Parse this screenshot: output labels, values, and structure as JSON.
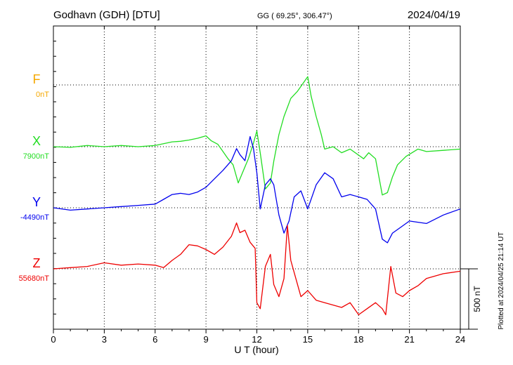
{
  "header": {
    "station": "Godhavn (GDH)  [DTU]",
    "coords": "GG ( 69.25°, 306.47°)",
    "date": "2024/04/19"
  },
  "side_note": "Plotted at 2024/04/25 21:14 UT",
  "chart_data": {
    "type": "line",
    "title": "Godhavn (GDH)  [DTU]",
    "xlabel": "U T (hour)",
    "ylabel": "",
    "xlim": [
      0,
      24
    ],
    "xticks": [
      0,
      3,
      6,
      9,
      12,
      15,
      18,
      21,
      24
    ],
    "grid": true,
    "scale_bar": {
      "label": "500 nT",
      "value_nT": 500
    },
    "component_spacing_nT": 500,
    "series": [
      {
        "name": "F",
        "baseline_label": "0nT",
        "baseline_nT": 0,
        "color": "#f5a800",
        "x": [],
        "y": []
      },
      {
        "name": "X",
        "baseline_label": "7900nT",
        "baseline_nT": 7900,
        "color": "#22dd22",
        "x": [
          0,
          1,
          2,
          3,
          4,
          5,
          6,
          7,
          7.5,
          8,
          8.5,
          9,
          9.3,
          9.7,
          10,
          10.3,
          10.6,
          10.9,
          11.2,
          11.5,
          11.8,
          12,
          12.2,
          12.5,
          12.8,
          13,
          13.3,
          13.6,
          14,
          14.4,
          14.7,
          15,
          15.2,
          15.5,
          15.8,
          16,
          16.5,
          17,
          17.5,
          18,
          18.3,
          18.6,
          19,
          19.4,
          19.7,
          20,
          20.3,
          20.8,
          21.5,
          22,
          23,
          24
        ],
        "y": [
          7900,
          7895,
          7910,
          7900,
          7910,
          7900,
          7910,
          7940,
          7945,
          7955,
          7970,
          7990,
          7950,
          7920,
          7860,
          7800,
          7750,
          7600,
          7700,
          7800,
          7930,
          8030,
          7850,
          7550,
          7600,
          7780,
          8000,
          8150,
          8300,
          8360,
          8420,
          8480,
          8320,
          8150,
          8000,
          7880,
          7900,
          7850,
          7880,
          7830,
          7800,
          7850,
          7800,
          7500,
          7520,
          7650,
          7750,
          7820,
          7880,
          7860,
          7870,
          7880
        ]
      },
      {
        "name": "Y",
        "baseline_label": "-4490nT",
        "baseline_nT": -4490,
        "color": "#0000ee",
        "x": [
          0,
          1,
          2,
          3,
          4,
          5,
          6,
          6.5,
          7,
          7.5,
          8,
          8.5,
          9,
          9.5,
          10,
          10.5,
          10.8,
          11,
          11.3,
          11.6,
          11.8,
          12,
          12.2,
          12.5,
          12.8,
          13,
          13.3,
          13.6,
          13.9,
          14.2,
          14.6,
          15,
          15.5,
          16,
          16.5,
          17,
          17.5,
          18,
          18.5,
          19,
          19.4,
          19.7,
          20,
          20.5,
          21,
          22,
          23,
          24
        ],
        "y": [
          -4490,
          -4510,
          -4500,
          -4490,
          -4480,
          -4470,
          -4460,
          -4420,
          -4380,
          -4370,
          -4380,
          -4360,
          -4320,
          -4250,
          -4180,
          -4100,
          -4000,
          -4050,
          -4100,
          -3900,
          -4000,
          -4200,
          -4500,
          -4300,
          -4250,
          -4300,
          -4550,
          -4700,
          -4600,
          -4400,
          -4350,
          -4500,
          -4300,
          -4200,
          -4250,
          -4400,
          -4380,
          -4400,
          -4420,
          -4500,
          -4750,
          -4780,
          -4700,
          -4650,
          -4600,
          -4620,
          -4550,
          -4500
        ]
      },
      {
        "name": "Z",
        "baseline_label": "55680nT",
        "baseline_nT": 55680,
        "color": "#ee0000",
        "x": [
          0,
          1,
          2,
          3,
          4,
          5,
          6,
          6.5,
          7,
          7.5,
          8,
          8.5,
          9,
          9.5,
          10,
          10.5,
          10.8,
          11,
          11.3,
          11.6,
          11.9,
          12,
          12.2,
          12.5,
          12.8,
          13,
          13.3,
          13.6,
          13.8,
          14,
          14.3,
          14.6,
          15,
          15.5,
          16,
          16.5,
          17,
          17.5,
          18,
          18.5,
          19,
          19.4,
          19.6,
          19.9,
          20.2,
          20.6,
          21,
          21.5,
          22,
          23,
          24
        ],
        "y": [
          55680,
          55690,
          55700,
          55730,
          55710,
          55720,
          55710,
          55690,
          55750,
          55800,
          55880,
          55870,
          55840,
          55800,
          55860,
          55950,
          56060,
          55980,
          56000,
          55900,
          55850,
          55400,
          55350,
          55700,
          55800,
          55550,
          55450,
          55600,
          56040,
          55750,
          55600,
          55450,
          55500,
          55420,
          55400,
          55380,
          55360,
          55400,
          55300,
          55350,
          55400,
          55350,
          55300,
          55700,
          55480,
          55450,
          55500,
          55540,
          55600,
          55640,
          55660
        ]
      }
    ]
  }
}
